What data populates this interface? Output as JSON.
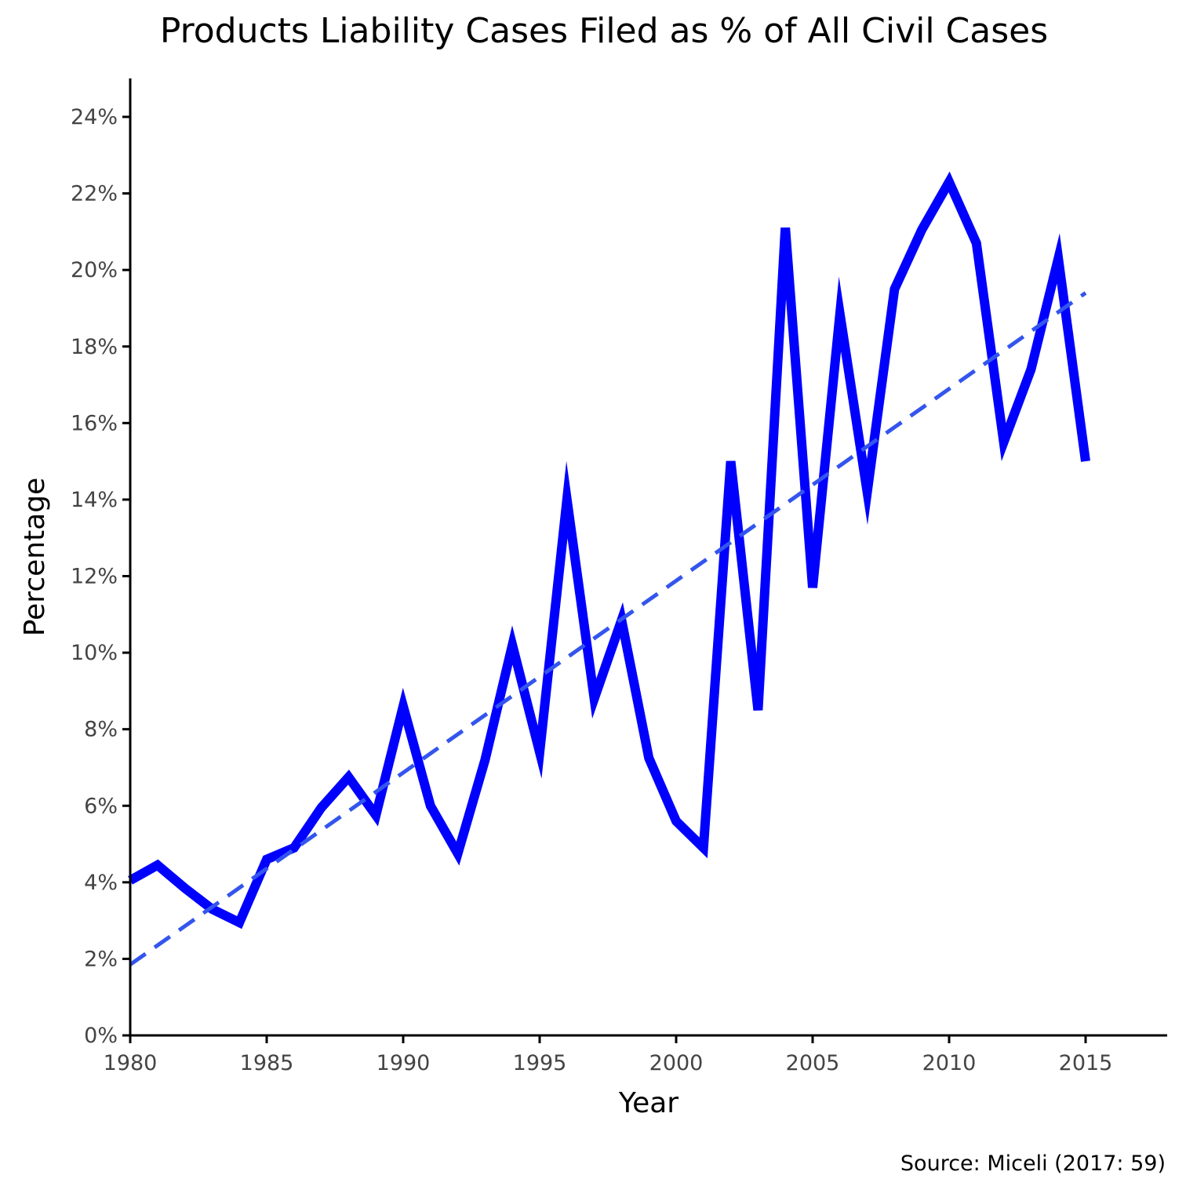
{
  "chart_data": {
    "type": "line",
    "title": "Products Liability Cases Filed as % of All Civil Cases",
    "xlabel": "Year",
    "ylabel": "Percentage",
    "caption": "Source: Miceli (2017: 59)",
    "xlim": [
      1980,
      2018
    ],
    "ylim": [
      0,
      25
    ],
    "x_ticks": [
      1980,
      1985,
      1990,
      1995,
      2000,
      2005,
      2010,
      2015
    ],
    "x_tick_labels": [
      "1980",
      "1985",
      "1990",
      "1995",
      "2000",
      "2005",
      "2010",
      "2015"
    ],
    "y_ticks": [
      0,
      2,
      4,
      6,
      8,
      10,
      12,
      14,
      16,
      18,
      20,
      22,
      24
    ],
    "y_tick_labels": [
      "0%",
      "2%",
      "4%",
      "6%",
      "8%",
      "10%",
      "12%",
      "14%",
      "16%",
      "18%",
      "20%",
      "22%",
      "24%"
    ],
    "grid": false,
    "series": [
      {
        "style": "solid",
        "color": "#0000ff",
        "x": [
          1980,
          1981,
          1982,
          1983,
          1984,
          1985,
          1986,
          1987,
          1988,
          1989,
          1990,
          1991,
          1992,
          1993,
          1994,
          1995,
          1996,
          1997,
          1998,
          1999,
          2000,
          2001,
          2002,
          2003,
          2004,
          2005,
          2006,
          2007,
          2008,
          2009,
          2010,
          2011,
          2012,
          2013,
          2014,
          2015
        ],
        "values": [
          4.05,
          4.45,
          3.85,
          3.3,
          2.95,
          4.6,
          4.9,
          5.95,
          6.75,
          5.75,
          8.6,
          6.0,
          4.75,
          7.2,
          10.2,
          7.4,
          14.0,
          8.8,
          10.85,
          7.25,
          5.6,
          4.9,
          15.0,
          8.5,
          21.1,
          11.7,
          18.85,
          14.2,
          19.5,
          21.05,
          22.3,
          20.7,
          15.5,
          17.4,
          20.3,
          15.0
        ]
      },
      {
        "style": "dashed",
        "color": "#3355ee",
        "x": [
          1980,
          2015
        ],
        "values": [
          1.85,
          19.4
        ]
      }
    ]
  }
}
